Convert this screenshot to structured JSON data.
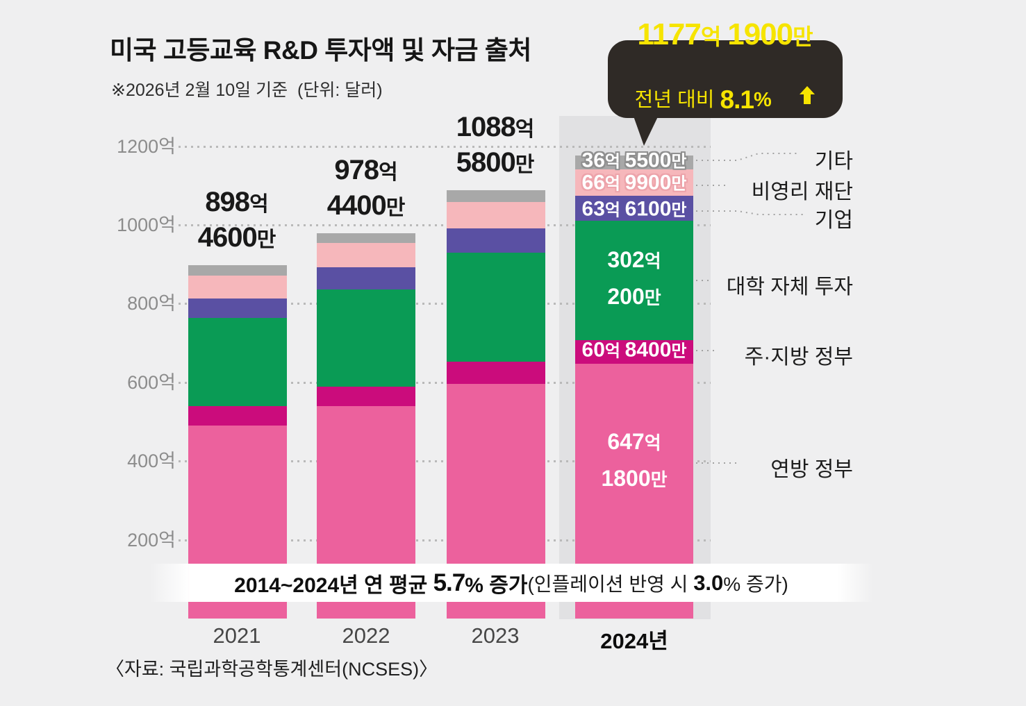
{
  "title": "미국 고등교육 R&D 투자액 및 자금 출처",
  "subtitle": "※2026년 2월 10일 기준  (단위: 달러)",
  "callout": {
    "line1": "1177억 1900만",
    "line2_prefix": "전년 대비 ",
    "line2_value": "8.1",
    "line2_suffix": "%",
    "arrow_icon": "up-arrow",
    "bg_color": "#2f2a26",
    "text_color": "#f6e400"
  },
  "banner": {
    "parts": [
      {
        "text": "2014~2024년 연 평균 ",
        "style": "bold"
      },
      {
        "text": "5.7",
        "style": "big"
      },
      {
        "text": "% 증가",
        "style": "bold"
      },
      {
        "text": "(인플레이션 반영 시 ",
        "style": "normal"
      },
      {
        "text": "3.0",
        "style": "bignum"
      },
      {
        "text": "% 증가)",
        "style": "normal"
      }
    ]
  },
  "source": "〈자료: 국립과학공학통계센터(NCSES)〉",
  "chart_data": {
    "type": "bar",
    "stacked": true,
    "title": "미국 고등교육 R&D 투자액 및 자금 출처",
    "unit": "달러 (값은 억 단위)",
    "categories": [
      "2021",
      "2022",
      "2023",
      "2024년"
    ],
    "totals": [
      898.46,
      978.44,
      1088.58,
      1177.19
    ],
    "totals_label": [
      [
        "898억",
        "4600만"
      ],
      [
        "978억",
        "4400만"
      ],
      [
        "1088억",
        "5800만"
      ],
      null
    ],
    "series": [
      {
        "key": "federal",
        "name": "연방 정부",
        "color": "#ec619d",
        "values": [
          489.5,
          539.8,
          596.5,
          647.18
        ],
        "label_2024": [
          "647억",
          "1800만"
        ],
        "label_dy": -42,
        "label_size": "lg"
      },
      {
        "key": "state",
        "name": "주·지방 정부",
        "color": "#cb0c7c",
        "values": [
          49.6,
          49.6,
          56.6,
          60.84
        ],
        "label_2024": [
          "60억 8400만"
        ],
        "label_size": "sm"
      },
      {
        "key": "institution",
        "name": "대학 자체 투자",
        "color": "#0a9b55",
        "values": [
          224.8,
          246.0,
          276.1,
          302.02
        ],
        "label_2024": [
          "302억",
          "200만"
        ],
        "label_size": "lg"
      },
      {
        "key": "business",
        "name": "기업",
        "color": "#5a50a3",
        "values": [
          49.6,
          56.6,
          61.9,
          63.61
        ],
        "label_2024": [
          "63억 6100만"
        ],
        "label_dy": 4,
        "label_size": "sm"
      },
      {
        "key": "nonprofit",
        "name": "비영리 재단",
        "color": "#f6b7bb",
        "values": [
          58.4,
          62.0,
          67.3,
          66.99
        ],
        "label_2024": [
          "66억 9900만"
        ],
        "label_dy": 3,
        "label_size": "sm",
        "outline": "#eda3aa"
      },
      {
        "key": "other",
        "name": "기타",
        "color": "#a8a8a8",
        "values": [
          26.5,
          24.4,
          30.1,
          36.55
        ],
        "label_2024": [
          "36억 5500만"
        ],
        "label_size": "sm",
        "outline": "#8f8f8f"
      }
    ],
    "y_ticks": [
      "1200억",
      "1000억",
      "800억",
      "600억",
      "400억",
      "200억"
    ],
    "y_tick_values": [
      1200,
      1000,
      800,
      600,
      400,
      200
    ],
    "ylim": [
      0,
      1250
    ],
    "grid": true,
    "legend_position": "right-labels"
  }
}
